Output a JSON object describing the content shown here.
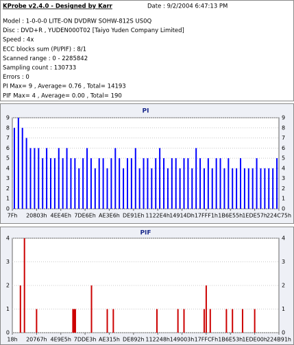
{
  "header": {
    "title": "KProbe v2.4.0 - Designed by Karr",
    "date": "Date : 9/2/2004 6:47:13 PM",
    "lines": [
      "Model : 1-0-0-0 LITE-ON DVDRW SOHW-812S  US0Q",
      "Disc : DVD+R , YUDEN000T02 [Taiyo Yuden Company Limited]",
      "Speed : 4x",
      "ECC blocks sum (PI/PIF) : 8/1",
      "Scanned range : 0 - 2285842",
      "Sampling count : 130733",
      "Errors : 0",
      "PI Max= 9 , Average= 0.76 , Total= 14193",
      "PIF Max= 4 , Average= 0.00 , Total= 190"
    ]
  },
  "chart_data": [
    {
      "type": "bar",
      "title": "PI",
      "color": "#0000ff",
      "grid": true,
      "x": [
        0.5,
        1.5,
        2.5,
        3.5,
        4.5,
        5.5,
        6.5,
        7.5,
        8.5,
        9.5,
        10.5,
        11.5,
        12.5,
        13.5,
        14.5,
        15.5,
        16.5,
        17.5,
        18.5,
        19.5,
        20.5,
        21.5,
        22.5,
        23.5,
        24.5,
        25.5,
        26.5,
        27.5,
        28.5,
        29.5,
        30.5,
        31.5,
        32.5,
        33.5,
        34.5,
        35.5,
        36.5,
        37.5,
        38.5,
        39.5,
        40.5,
        41.5,
        42.5,
        43.5,
        44.5,
        45.5,
        46.5,
        47.5,
        48.5,
        49.5,
        50.5,
        51.5,
        52.5,
        53.5,
        54.5,
        55.5,
        56.5,
        57.5,
        58.5,
        59.5,
        60.5,
        61.5,
        62.5,
        63.5,
        64.5,
        65.5
      ],
      "values": [
        8,
        9,
        8,
        7,
        6,
        6,
        6,
        5,
        6,
        5,
        5,
        6,
        5,
        6,
        5,
        5,
        4,
        5,
        6,
        5,
        4,
        5,
        5,
        4,
        5,
        6,
        5,
        4,
        5,
        5,
        6,
        4,
        5,
        5,
        4,
        5,
        6,
        5,
        4,
        5,
        5,
        4,
        5,
        5,
        4,
        6,
        5,
        4,
        5,
        4,
        5,
        5,
        4,
        5,
        4,
        4,
        5,
        4,
        4,
        4,
        5,
        4,
        4,
        4,
        4,
        5
      ],
      "xlim": [
        0,
        66
      ],
      "xticks": [
        {
          "value": 0,
          "label": "7Fh"
        },
        {
          "value": 6,
          "label": "20803h"
        },
        {
          "value": 12,
          "label": "4EE4Eh"
        },
        {
          "value": 18,
          "label": "7DE6Eh"
        },
        {
          "value": 24,
          "label": "AE3E6h"
        },
        {
          "value": 30,
          "label": "DE91Eh"
        },
        {
          "value": 36,
          "label": "1122E4h"
        },
        {
          "value": 42,
          "label": "14914Dh"
        },
        {
          "value": 48,
          "label": "17FFF1h"
        },
        {
          "value": 54,
          "label": "1B6E55h"
        },
        {
          "value": 60,
          "label": "1EDE57h"
        },
        {
          "value": 66,
          "label": "224C75h"
        }
      ],
      "ylim": [
        0,
        9
      ],
      "yticks": [
        0,
        1,
        2,
        3,
        4,
        5,
        6,
        7,
        8,
        9
      ]
    },
    {
      "type": "bar",
      "title": "PIF",
      "color": "#cc0000",
      "grid": true,
      "x": [
        2,
        3,
        6,
        15,
        15.3,
        15.6,
        19.6,
        23.5,
        25,
        35.8,
        41,
        42.5,
        47.5,
        48,
        49,
        53,
        54.5,
        57,
        60
      ],
      "values": [
        2,
        4,
        1,
        1,
        1,
        1,
        2,
        1,
        1,
        1,
        1,
        1,
        1,
        2,
        1,
        1,
        1,
        1,
        1
      ],
      "xlim": [
        0,
        66
      ],
      "xticks": [
        {
          "value": 0,
          "label": "18h"
        },
        {
          "value": 6,
          "label": "20767h"
        },
        {
          "value": 12,
          "label": "4E9E5h"
        },
        {
          "value": 18,
          "label": "7DDE3h"
        },
        {
          "value": 24,
          "label": "AE315h"
        },
        {
          "value": 30,
          "label": "DE892h"
        },
        {
          "value": 36,
          "label": "112248h"
        },
        {
          "value": 42,
          "label": "149003h"
        },
        {
          "value": 48,
          "label": "17FFCFh"
        },
        {
          "value": 54,
          "label": "1B6E53h"
        },
        {
          "value": 60,
          "label": "1EDE00h"
        },
        {
          "value": 66,
          "label": "224B91h"
        }
      ],
      "ylim": [
        0,
        4
      ],
      "yticks": [
        0,
        1,
        2,
        3,
        4
      ]
    }
  ]
}
